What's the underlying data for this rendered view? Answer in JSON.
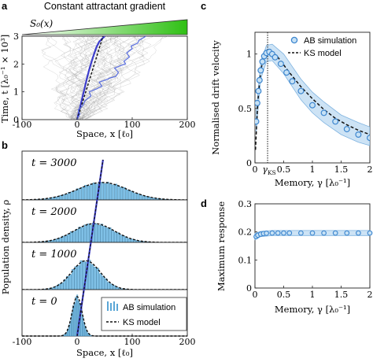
{
  "chart_data": [
    {
      "panel": "a",
      "type": "line",
      "title": "Constant attractant gradient",
      "gradient_label": "S₀(x)",
      "xlabel": "Space, x [ℓ₀]",
      "ylabel": "Time, t [λ₀⁻¹ × 10³]",
      "xlim": [
        -100,
        200
      ],
      "ylim": [
        0,
        3
      ],
      "xticks": [
        "-100",
        "0",
        "100",
        "200"
      ],
      "yticks": [
        "0",
        "1",
        "2",
        "3"
      ],
      "series": [
        {
          "kind": "mean-trajectory",
          "color": "#3d3dcc",
          "x": [
            0,
            6,
            12,
            18,
            22,
            28,
            35,
            40,
            50
          ],
          "y": [
            0,
            0.5,
            1.0,
            1.5,
            1.8,
            2.2,
            2.6,
            2.8,
            3.0
          ]
        },
        {
          "kind": "ks-prediction",
          "color": "#111111",
          "x": [
            0,
            47
          ],
          "y": [
            0,
            3
          ]
        },
        {
          "kind": "example-trajectory",
          "color": "#5b6fe0",
          "x": [
            0,
            5,
            2,
            10,
            15,
            25,
            22,
            35,
            45,
            40,
            55,
            60,
            70,
            75,
            68,
            80,
            88,
            85,
            95,
            90,
            100,
            98,
            110,
            112,
            118,
            125
          ],
          "y": [
            0,
            0.2,
            0.35,
            0.5,
            0.7,
            0.85,
            1.0,
            1.1,
            1.2,
            1.35,
            1.45,
            1.5,
            1.55,
            1.7,
            1.85,
            1.95,
            2.0,
            2.1,
            2.25,
            2.4,
            2.55,
            2.65,
            2.75,
            2.85,
            2.92,
            3.0
          ]
        }
      ]
    },
    {
      "panel": "b",
      "type": "bar",
      "xlabel": "Space, x [ℓ₀]",
      "ylabel": "Population density, ρ",
      "xlim": [
        -100,
        200
      ],
      "xticks": [
        "-100",
        "0",
        "100",
        "200"
      ],
      "legend": {
        "placement": "bottom-right",
        "entries": [
          "AB simulation",
          "KS model"
        ]
      },
      "drift_line": {
        "x": [
          0,
          47
        ],
        "t": [
          0,
          3000
        ]
      },
      "subpanels": [
        {
          "label": "t = 3000",
          "mean": 46,
          "sd": 45,
          "peak": 0.42
        },
        {
          "label": "t = 2000",
          "mean": 31,
          "sd": 37,
          "peak": 0.52
        },
        {
          "label": "t = 1000",
          "mean": 16,
          "sd": 26,
          "peak": 0.72
        },
        {
          "label": "t = 0",
          "mean": 0,
          "sd": 9,
          "peak": 1.0
        }
      ]
    },
    {
      "panel": "c",
      "type": "scatter",
      "xlabel": "Memory, γ [λ₀⁻¹]",
      "ylabel": "Normalised drift velocity",
      "xlim": [
        0,
        2
      ],
      "ylim": [
        0,
        1.2
      ],
      "xticks": [
        "0",
        "0.5",
        "1",
        "1.5",
        "2"
      ],
      "yticks": [
        "0",
        "0.5",
        "1"
      ],
      "gamma_ks_label": "γ",
      "gamma_ks_subscript": "KS",
      "gamma_ks": 0.22,
      "legend": {
        "placement": "top-right",
        "entries": [
          "AB simulation",
          "KS model"
        ]
      },
      "series": [
        {
          "name": "AB simulation",
          "x": [
            0.02,
            0.04,
            0.06,
            0.08,
            0.1,
            0.13,
            0.16,
            0.2,
            0.25,
            0.3,
            0.35,
            0.45,
            0.55,
            0.65,
            0.8,
            1.0,
            1.2,
            1.4,
            1.6,
            1.8,
            2.0
          ],
          "y": [
            0.38,
            0.55,
            0.66,
            0.76,
            0.85,
            0.93,
            0.98,
            1.01,
            1.02,
            1.0,
            0.97,
            0.91,
            0.83,
            0.75,
            0.66,
            0.53,
            0.46,
            0.38,
            0.31,
            0.26,
            0.23
          ]
        },
        {
          "name": "KS model",
          "x": [
            0.01,
            0.03,
            0.05,
            0.08,
            0.11,
            0.15,
            0.2,
            0.25,
            0.3,
            0.4,
            0.5,
            0.6,
            0.8,
            1.0,
            1.2,
            1.4,
            1.6,
            1.8,
            2.0
          ],
          "y": [
            0.12,
            0.36,
            0.55,
            0.74,
            0.87,
            0.97,
            1.02,
            1.03,
            1.02,
            0.97,
            0.9,
            0.83,
            0.7,
            0.59,
            0.49,
            0.41,
            0.35,
            0.3,
            0.26
          ]
        }
      ],
      "band": {
        "x": [
          0.02,
          0.1,
          0.2,
          0.3,
          0.5,
          0.8,
          1.0,
          1.2,
          1.5,
          1.8,
          2.0
        ],
        "lower": [
          0.28,
          0.77,
          0.93,
          0.94,
          0.82,
          0.58,
          0.46,
          0.37,
          0.26,
          0.19,
          0.16
        ],
        "upper": [
          0.48,
          0.92,
          1.08,
          1.09,
          1.0,
          0.77,
          0.65,
          0.56,
          0.44,
          0.37,
          0.33
        ]
      }
    },
    {
      "panel": "d",
      "type": "scatter",
      "xlabel": "Memory, γ [λ₀⁻¹]",
      "ylabel": "Maximum response",
      "xlim": [
        0,
        2
      ],
      "ylim": [
        0,
        0.3
      ],
      "xticks": [
        "0",
        "0.5",
        "1",
        "1.5",
        "2"
      ],
      "yticks": [
        "0",
        "0.1",
        "0.2",
        "0.3"
      ],
      "series": [
        {
          "name": "AB simulation",
          "x": [
            0.02,
            0.05,
            0.1,
            0.15,
            0.2,
            0.3,
            0.4,
            0.5,
            0.6,
            0.8,
            1.0,
            1.2,
            1.4,
            1.6,
            1.8,
            2.0
          ],
          "y": [
            0.183,
            0.188,
            0.192,
            0.194,
            0.195,
            0.196,
            0.196,
            0.196,
            0.196,
            0.196,
            0.196,
            0.196,
            0.196,
            0.196,
            0.196,
            0.196
          ]
        }
      ],
      "band": {
        "x": [
          0.0,
          0.1,
          0.3,
          1.0,
          2.0
        ],
        "lower": [
          0.172,
          0.183,
          0.187,
          0.187,
          0.187
        ],
        "upper": [
          0.195,
          0.202,
          0.205,
          0.205,
          0.205
        ]
      }
    }
  ]
}
